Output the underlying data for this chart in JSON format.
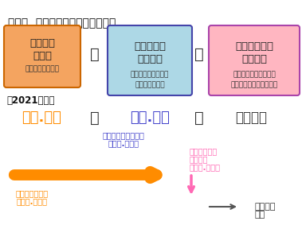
{
  "title": "図表１  年金額改定ルールの全体像",
  "box1_title": "年金額の\n改定率",
  "box1_sub": "（全員が毎年度）",
  "box1_bg": "#F4A460",
  "box1_border": "#CC6600",
  "box2_title": "物価・賃金\nの伸び率",
  "box2_sub1": "（実質価値の維持）",
  "box2_sub2": "＜本来の改定＞",
  "box2_bg": "#ADD8E6",
  "box2_border": "#4444AA",
  "box3_title": "少子・長寿化\nの影響分",
  "box3_sub1": "（年金財政の健全化）",
  "box3_sub2": "＜マクロ経済スライド＞",
  "box3_bg": "#FFB6C1",
  "box3_border": "#AA44AA",
  "year_label": "【2021年度】",
  "val1": "－０.１％",
  "val1_color": "#FF8C00",
  "val2": "－０.１％",
  "val2_color": "#4444CC",
  "val3": "＜繰越＞",
  "val3_color": "#333333",
  "eq_color": "#333333",
  "plus_color": "#333333",
  "arrow_label1_line1": "物価・賃金の伸び率",
  "arrow_label1_line2": "（－０.１％）",
  "arrow_label1_color": "#4444CC",
  "arrow_color": "#FF8C00",
  "pension_label_line1": "年金額の改定率",
  "pension_label_line2": "（－０.１％）",
  "pension_label_color": "#FF8C00",
  "shoshi_label_line1": "少子・長寿化",
  "shoshi_label_line2": "の影響分",
  "shoshi_label_line3": "（－０.１％）",
  "shoshi_label_color": "#FF69B4",
  "next_label_line1": "次年度へ",
  "next_label_line2": "繰越",
  "next_label_color": "#333333",
  "down_arrow_color": "#FF69B4",
  "right_arrow_color": "#333333",
  "bg_color": "#FFFFFF"
}
